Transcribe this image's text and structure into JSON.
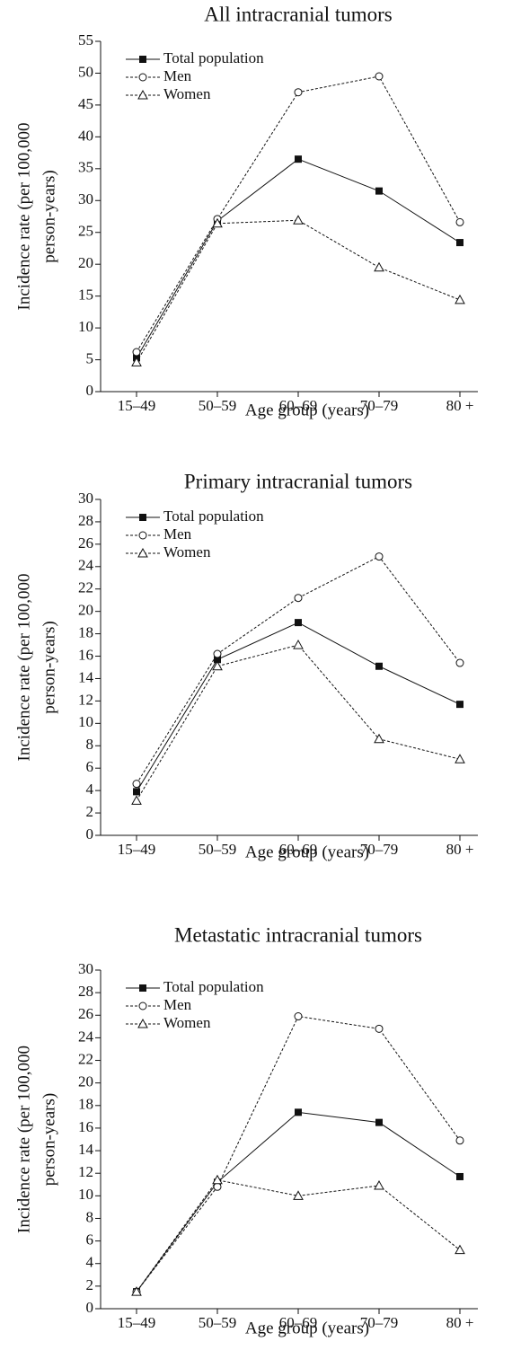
{
  "chart_data": [
    {
      "type": "line",
      "title": "All intracranial tumors",
      "categories": [
        "15–49",
        "50–59",
        "60–69",
        "70–79",
        "80 +"
      ],
      "xlabel": "Age group (years)",
      "ylabel": [
        "Incidence rate (per 100,000",
        "person-years)"
      ],
      "ylim": [
        0,
        55
      ],
      "yticks": [
        0,
        5,
        10,
        15,
        20,
        25,
        30,
        35,
        40,
        45,
        50,
        55
      ],
      "legend": "upper left",
      "series": [
        {
          "name": "Total population",
          "color": "#111111",
          "line_style": "solid",
          "marker": "square",
          "values": [
            5.3,
            26.8,
            36.5,
            31.5,
            23.4
          ]
        },
        {
          "name": "Men",
          "color": "#111111",
          "line_style": "dashed",
          "marker": "circle",
          "values": [
            6.2,
            27.1,
            47,
            49.5,
            26.6
          ]
        },
        {
          "name": "Women",
          "color": "#111111",
          "line_style": "dashed",
          "marker": "triangle",
          "values": [
            4.6,
            26.4,
            26.9,
            19.5,
            14.4
          ]
        }
      ]
    },
    {
      "type": "line",
      "title": "Primary intracranial tumors",
      "categories": [
        "15–49",
        "50–59",
        "60–69",
        "70–79",
        "80 +"
      ],
      "xlabel": "Age group (years)",
      "ylabel": [
        "Incidence rate (per 100,000",
        "person-years)"
      ],
      "ylim": [
        0,
        30
      ],
      "yticks": [
        0,
        2,
        4,
        6,
        8,
        10,
        12,
        14,
        16,
        18,
        20,
        22,
        24,
        26,
        28,
        30
      ],
      "legend": "upper left",
      "series": [
        {
          "name": "Total population",
          "color": "#111111",
          "line_style": "solid",
          "marker": "square",
          "values": [
            3.9,
            15.7,
            19,
            15.1,
            11.7
          ]
        },
        {
          "name": "Men",
          "color": "#111111",
          "line_style": "dashed",
          "marker": "circle",
          "values": [
            4.6,
            16.2,
            21.2,
            24.9,
            15.4
          ]
        },
        {
          "name": "Women",
          "color": "#111111",
          "line_style": "dashed",
          "marker": "triangle",
          "values": [
            3.1,
            15.1,
            17,
            8.6,
            6.8
          ]
        }
      ]
    },
    {
      "type": "line",
      "title": "Metastatic intracranial tumors",
      "categories": [
        "15–49",
        "50–59",
        "60–69",
        "70–79",
        "80 +"
      ],
      "xlabel": "Age group (years)",
      "ylabel": [
        "Incidence rate (per 100,000",
        "person-years)"
      ],
      "ylim": [
        0,
        30
      ],
      "yticks": [
        0,
        2,
        4,
        6,
        8,
        10,
        12,
        14,
        16,
        18,
        20,
        22,
        24,
        26,
        28,
        30
      ],
      "legend": "upper left",
      "series": [
        {
          "name": "Total population",
          "color": "#111111",
          "line_style": "solid",
          "marker": "square",
          "values": [
            1.5,
            11.2,
            17.4,
            16.5,
            11.7
          ]
        },
        {
          "name": "Men",
          "color": "#111111",
          "line_style": "dashed",
          "marker": "circle",
          "values": [
            1.5,
            10.8,
            25.9,
            24.8,
            14.9
          ]
        },
        {
          "name": "Women",
          "color": "#111111",
          "line_style": "dashed",
          "marker": "triangle",
          "values": [
            1.5,
            11.4,
            10,
            10.9,
            5.2
          ]
        }
      ]
    }
  ]
}
